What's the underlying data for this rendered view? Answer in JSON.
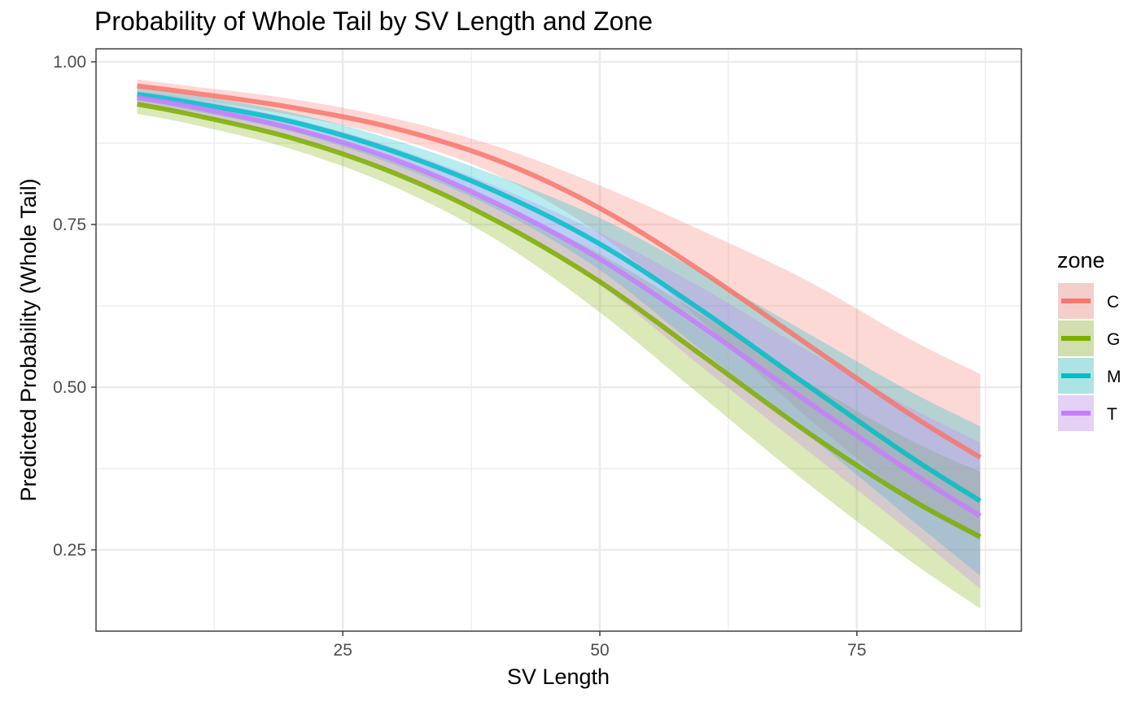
{
  "chart_data": {
    "type": "line",
    "title": "Probability of Whole Tail by SV Length and Zone",
    "xlabel": "SV Length",
    "ylabel": "Predicted Probability (Whole Tail)",
    "xlim": [
      1,
      91
    ],
    "ylim": [
      0.125,
      1.02
    ],
    "x_ticks": [
      25,
      50,
      75
    ],
    "x_tick_labels": [
      "25",
      "50",
      "75"
    ],
    "y_ticks": [
      0.25,
      0.5,
      0.75,
      1.0
    ],
    "y_tick_labels": [
      "0.25",
      "0.50",
      "0.75",
      "1.00"
    ],
    "grid": true,
    "legend_title": "zone",
    "legend_position": "right",
    "x": [
      5,
      10,
      20,
      30,
      40,
      50,
      60,
      70,
      80,
      87
    ],
    "series": [
      {
        "name": "C",
        "color": "#F8766D",
        "values": [
          0.963,
          0.953,
          0.93,
          0.898,
          0.849,
          0.775,
          0.677,
          0.568,
          0.46,
          0.392
        ],
        "lower": [
          0.952,
          0.943,
          0.918,
          0.883,
          0.826,
          0.735,
          0.6,
          0.456,
          0.33,
          0.265
        ],
        "upper": [
          0.973,
          0.963,
          0.943,
          0.913,
          0.87,
          0.81,
          0.74,
          0.665,
          0.575,
          0.52
        ]
      },
      {
        "name": "G",
        "color": "#7CAE00",
        "values": [
          0.935,
          0.92,
          0.883,
          0.829,
          0.755,
          0.662,
          0.548,
          0.433,
          0.33,
          0.27
        ],
        "lower": [
          0.92,
          0.905,
          0.866,
          0.808,
          0.726,
          0.615,
          0.485,
          0.355,
          0.235,
          0.16
        ],
        "upper": [
          0.948,
          0.934,
          0.9,
          0.85,
          0.782,
          0.705,
          0.61,
          0.51,
          0.42,
          0.37
        ]
      },
      {
        "name": "M",
        "color": "#00BFC4",
        "values": [
          0.95,
          0.938,
          0.908,
          0.862,
          0.8,
          0.72,
          0.617,
          0.505,
          0.395,
          0.325
        ],
        "lower": [
          0.94,
          0.926,
          0.893,
          0.842,
          0.773,
          0.68,
          0.555,
          0.43,
          0.3,
          0.21
        ],
        "upper": [
          0.96,
          0.95,
          0.922,
          0.88,
          0.825,
          0.76,
          0.675,
          0.585,
          0.495,
          0.44
        ]
      },
      {
        "name": "T",
        "color": "#C77CFF",
        "values": [
          0.945,
          0.932,
          0.898,
          0.85,
          0.782,
          0.697,
          0.592,
          0.48,
          0.372,
          0.302
        ],
        "lower": [
          0.935,
          0.92,
          0.884,
          0.83,
          0.755,
          0.657,
          0.53,
          0.405,
          0.28,
          0.19
        ],
        "upper": [
          0.955,
          0.944,
          0.913,
          0.868,
          0.808,
          0.737,
          0.652,
          0.558,
          0.47,
          0.415
        ]
      }
    ]
  }
}
